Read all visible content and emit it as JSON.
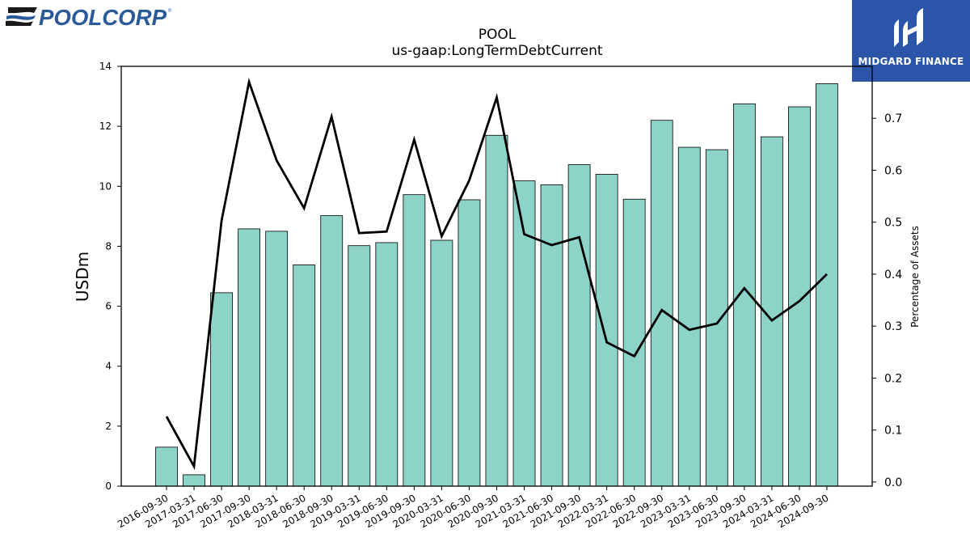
{
  "branding": {
    "company_logo_text": "POOLCORP",
    "publisher_name": "MIDGARD FINANCE"
  },
  "chart_data": {
    "type": "bar",
    "title": "POOL",
    "subtitle": "us-gaap:LongTermDebtCurrent",
    "ylabel": "USDm",
    "y2label": "Percentage of Assets",
    "categories": [
      "2016-09-30",
      "2017-03-31",
      "2017-06-30",
      "2017-09-30",
      "2018-03-31",
      "2018-06-30",
      "2018-09-30",
      "2019-03-31",
      "2019-06-30",
      "2019-09-30",
      "2020-03-31",
      "2020-06-30",
      "2020-09-30",
      "2021-03-31",
      "2021-06-30",
      "2021-09-30",
      "2022-03-31",
      "2022-06-30",
      "2022-09-30",
      "2023-03-31",
      "2023-06-30",
      "2023-09-30",
      "2024-03-31",
      "2024-06-30",
      "2024-09-30"
    ],
    "series": [
      {
        "axis": "left",
        "kind": "bar",
        "color": "#8dd3c7",
        "values": [
          1.3,
          0.38,
          6.45,
          8.58,
          8.5,
          7.38,
          9.02,
          8.02,
          8.12,
          9.72,
          8.2,
          9.55,
          11.7,
          10.18,
          10.05,
          10.72,
          10.4,
          9.57,
          12.2,
          11.3,
          11.22,
          12.75,
          11.65,
          12.65,
          13.42
        ]
      },
      {
        "axis": "right",
        "kind": "line",
        "color": "#000000",
        "values": [
          0.126,
          0.03,
          0.503,
          0.77,
          0.619,
          0.527,
          0.703,
          0.479,
          0.482,
          0.659,
          0.473,
          0.58,
          0.74,
          0.477,
          0.456,
          0.471,
          0.269,
          0.242,
          0.331,
          0.293,
          0.305,
          0.373,
          0.311,
          0.348,
          0.4
        ]
      }
    ],
    "ylim": [
      0,
      14
    ],
    "y2lim": [
      -0.008,
      0.8
    ],
    "yticks": [
      0,
      2,
      4,
      6,
      8,
      10,
      12,
      14
    ],
    "y2ticks": [
      "0.0",
      "0.1",
      "0.2",
      "0.3",
      "0.4",
      "0.5",
      "0.6",
      "0.7"
    ],
    "grid": false,
    "legend": "none"
  }
}
